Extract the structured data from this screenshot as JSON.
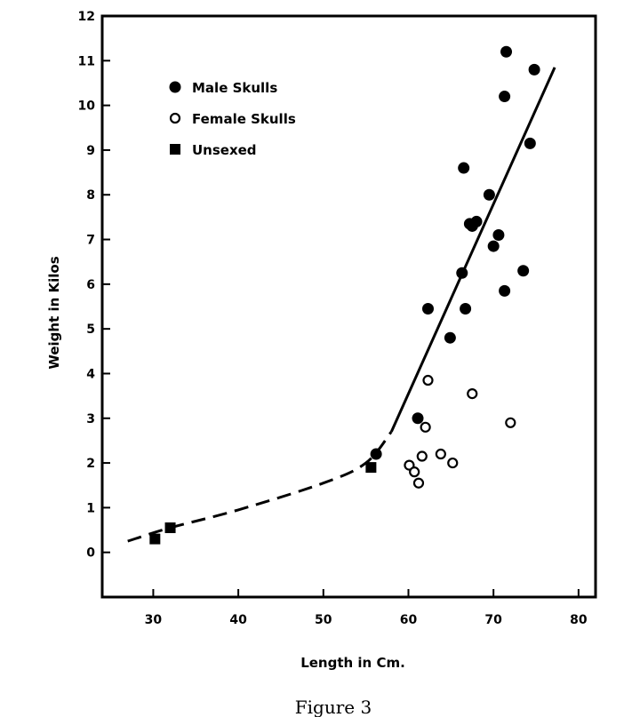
{
  "chart_data": {
    "type": "scatter",
    "xlabel": "Length in Cm.",
    "ylabel": "Weight in Kilos",
    "caption": "Figure 3",
    "xlim": [
      24,
      82
    ],
    "ylim": [
      -1,
      12
    ],
    "x_ticks": [
      30,
      40,
      50,
      60,
      70,
      80
    ],
    "y_ticks": [
      0,
      1,
      2,
      3,
      4,
      5,
      6,
      7,
      8,
      9,
      10,
      11,
      12
    ],
    "grid": false,
    "legend_position": "top-left",
    "series": [
      {
        "name": "Male Skulls",
        "marker": "filled-circle",
        "points": [
          [
            71.5,
            11.2
          ],
          [
            74.8,
            10.8
          ],
          [
            71.3,
            10.2
          ],
          [
            74.3,
            9.15
          ],
          [
            66.5,
            8.6
          ],
          [
            69.5,
            8.0
          ],
          [
            67.2,
            7.35
          ],
          [
            68.0,
            7.4
          ],
          [
            67.5,
            7.3
          ],
          [
            70.6,
            7.1
          ],
          [
            70.0,
            6.85
          ],
          [
            66.3,
            6.25
          ],
          [
            73.5,
            6.3
          ],
          [
            71.3,
            5.85
          ],
          [
            62.3,
            5.45
          ],
          [
            66.7,
            5.45
          ],
          [
            64.9,
            4.8
          ],
          [
            61.1,
            3.0
          ],
          [
            56.2,
            2.2
          ]
        ]
      },
      {
        "name": "Female Skulls",
        "marker": "open-circle",
        "points": [
          [
            62.3,
            3.85
          ],
          [
            67.5,
            3.55
          ],
          [
            72.0,
            2.9
          ],
          [
            62.0,
            2.8
          ],
          [
            63.8,
            2.2
          ],
          [
            61.6,
            2.15
          ],
          [
            65.2,
            2.0
          ],
          [
            60.1,
            1.95
          ],
          [
            60.7,
            1.8
          ],
          [
            61.2,
            1.55
          ]
        ]
      },
      {
        "name": "Unsexed",
        "marker": "filled-square",
        "points": [
          [
            30.2,
            0.3
          ],
          [
            32.0,
            0.55
          ],
          [
            55.6,
            1.9
          ]
        ]
      }
    ],
    "fit_curve": {
      "dashed": [
        [
          27.0,
          0.25
        ],
        [
          32,
          0.55
        ],
        [
          40,
          0.95
        ],
        [
          50,
          1.55
        ],
        [
          55,
          2.0
        ],
        [
          58,
          2.7
        ]
      ],
      "solid": [
        [
          58,
          2.7
        ],
        [
          77.2,
          10.85
        ]
      ]
    }
  }
}
